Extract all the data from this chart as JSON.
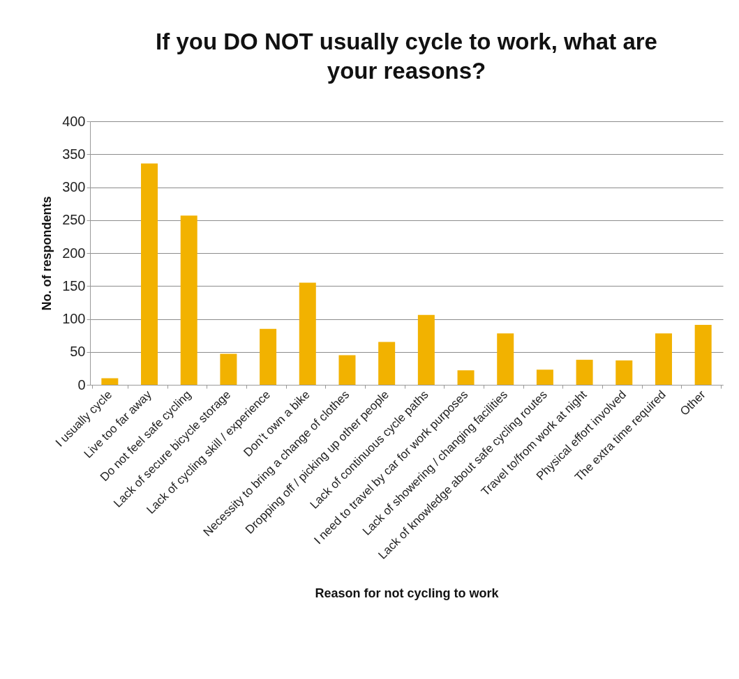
{
  "chart_data": {
    "type": "bar",
    "title": "If you DO NOT usually cycle to work, what are your reasons?",
    "xlabel": "Reason for not cycling to work",
    "ylabel": "No. of respondents",
    "categories": [
      "I usually cycle",
      "Live too far away",
      "Do not feel safe cycling",
      "Lack of secure bicycle storage",
      "Lack of cycling skill / experience",
      "Don’t own a bike",
      "Necessity to bring a change of clothes",
      "Dropping off / picking up other people",
      "Lack of continuous cycle paths",
      "I need to travel by car for work purposes",
      "Lack of showering / changing facilities",
      "Lack of knowledge about safe cycling routes",
      "Travel to/from work at night",
      "Physical effort involved",
      "The extra time required",
      "Other"
    ],
    "values": [
      10,
      336,
      257,
      47,
      85,
      155,
      45,
      65,
      106,
      22,
      78,
      23,
      38,
      37,
      78,
      91
    ],
    "color": "#f2b200",
    "ylim": [
      0,
      400
    ],
    "yticks": [
      0,
      50,
      100,
      150,
      200,
      250,
      300,
      350,
      400
    ],
    "grid": "y"
  }
}
